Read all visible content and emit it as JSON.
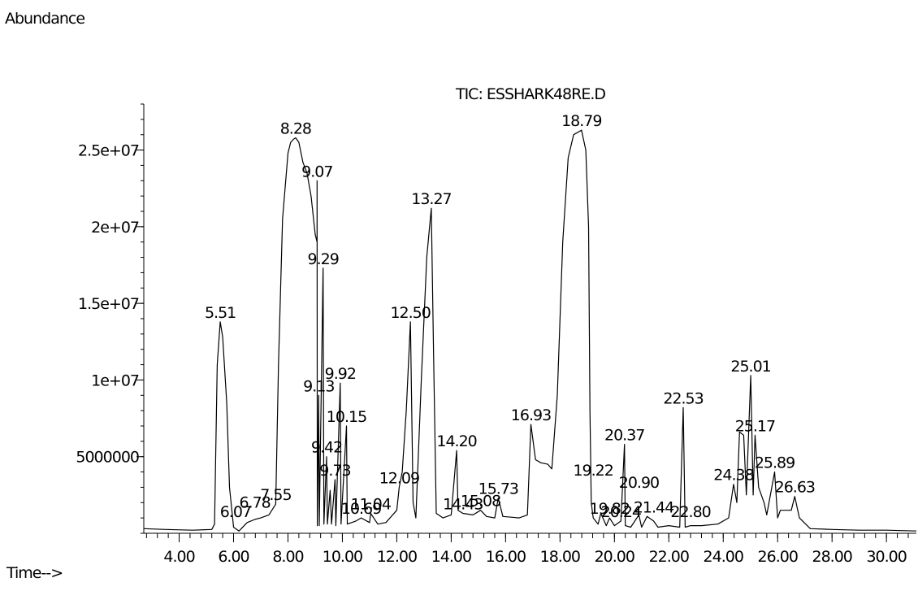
{
  "page": {
    "y_axis_caption": "Abundance",
    "x_axis_caption": "Time-->"
  },
  "chart_data": {
    "type": "line",
    "title": "TIC: ESSHARK48RE.D",
    "xlabel": "Time-->",
    "ylabel": "Abundance",
    "xlim": [
      2.7,
      31.1
    ],
    "ylim": [
      0,
      28000000
    ],
    "x_ticks": [
      "4.00",
      "6.00",
      "8.00",
      "10.00",
      "12.00",
      "14.00",
      "16.00",
      "18.00",
      "20.00",
      "22.00",
      "24.00",
      "26.00",
      "28.00",
      "30.00"
    ],
    "y_ticks": [
      {
        "value": 5000000,
        "label": "5000000"
      },
      {
        "value": 10000000,
        "label": "1e+07"
      },
      {
        "value": 15000000,
        "label": "1.5e+07"
      },
      {
        "value": 20000000,
        "label": "2e+07"
      },
      {
        "value": 25000000,
        "label": "2.5e+07"
      }
    ],
    "series": [
      {
        "points": [
          [
            2.7,
            300000
          ],
          [
            3.5,
            250000
          ],
          [
            4.5,
            200000
          ],
          [
            5.2,
            250000
          ],
          [
            5.3,
            600000
          ],
          [
            5.4,
            11000000
          ],
          [
            5.51,
            13800000
          ],
          [
            5.6,
            12800000
          ],
          [
            5.75,
            8500000
          ],
          [
            5.85,
            3000000
          ],
          [
            6.0,
            400000
          ],
          [
            6.2,
            150000
          ],
          [
            6.5,
            700000
          ],
          [
            6.78,
            900000
          ],
          [
            7.0,
            1000000
          ],
          [
            7.3,
            1200000
          ],
          [
            7.55,
            1900000
          ],
          [
            7.65,
            11000000
          ],
          [
            7.8,
            20500000
          ],
          [
            8.0,
            24800000
          ],
          [
            8.1,
            25500000
          ],
          [
            8.2,
            25700000
          ],
          [
            8.28,
            25800000
          ],
          [
            8.4,
            25500000
          ],
          [
            8.55,
            24200000
          ],
          [
            8.7,
            23500000
          ],
          [
            8.85,
            22000000
          ],
          [
            9.0,
            19500000
          ],
          [
            9.07,
            19000000
          ],
          [
            9.07,
            23000000
          ],
          [
            9.08,
            500000
          ],
          [
            9.13,
            9000000
          ],
          [
            9.15,
            500000
          ],
          [
            9.29,
            17300000
          ],
          [
            9.32,
            600000
          ],
          [
            9.42,
            5000000
          ],
          [
            9.45,
            600000
          ],
          [
            9.55,
            2800000
          ],
          [
            9.6,
            600000
          ],
          [
            9.73,
            3500000
          ],
          [
            9.76,
            500000
          ],
          [
            9.92,
            9800000
          ],
          [
            9.95,
            600000
          ],
          [
            10.15,
            7000000
          ],
          [
            10.18,
            600000
          ],
          [
            10.5,
            800000
          ],
          [
            10.69,
            1000000
          ],
          [
            11.0,
            700000
          ],
          [
            11.04,
            1300000
          ],
          [
            11.3,
            600000
          ],
          [
            11.6,
            700000
          ],
          [
            12.0,
            1500000
          ],
          [
            12.09,
            3000000
          ],
          [
            12.2,
            4000000
          ],
          [
            12.35,
            8000000
          ],
          [
            12.5,
            13800000
          ],
          [
            12.6,
            2000000
          ],
          [
            12.7,
            1000000
          ],
          [
            12.9,
            10000000
          ],
          [
            13.1,
            18000000
          ],
          [
            13.27,
            21200000
          ],
          [
            13.35,
            12000000
          ],
          [
            13.45,
            1300000
          ],
          [
            13.7,
            1000000
          ],
          [
            14.0,
            1200000
          ],
          [
            14.2,
            5400000
          ],
          [
            14.25,
            1500000
          ],
          [
            14.43,
            1300000
          ],
          [
            14.8,
            1200000
          ],
          [
            15.08,
            1500000
          ],
          [
            15.3,
            1100000
          ],
          [
            15.6,
            1000000
          ],
          [
            15.73,
            2300000
          ],
          [
            15.9,
            1100000
          ],
          [
            16.5,
            1000000
          ],
          [
            16.8,
            1200000
          ],
          [
            16.93,
            7100000
          ],
          [
            17.1,
            4800000
          ],
          [
            17.3,
            4600000
          ],
          [
            17.55,
            4500000
          ],
          [
            17.7,
            4200000
          ],
          [
            17.9,
            9000000
          ],
          [
            18.1,
            19000000
          ],
          [
            18.3,
            24500000
          ],
          [
            18.5,
            26000000
          ],
          [
            18.79,
            26300000
          ],
          [
            18.95,
            25000000
          ],
          [
            19.05,
            20000000
          ],
          [
            19.1,
            8000000
          ],
          [
            19.15,
            2000000
          ],
          [
            19.22,
            1000000
          ],
          [
            19.4,
            600000
          ],
          [
            19.5,
            1300000
          ],
          [
            19.7,
            500000
          ],
          [
            19.82,
            1000000
          ],
          [
            20.0,
            500000
          ],
          [
            20.24,
            800000
          ],
          [
            20.37,
            5800000
          ],
          [
            20.4,
            500000
          ],
          [
            20.6,
            400000
          ],
          [
            20.9,
            1200000
          ],
          [
            21.0,
            400000
          ],
          [
            21.2,
            1100000
          ],
          [
            21.44,
            800000
          ],
          [
            21.6,
            400000
          ],
          [
            22.0,
            500000
          ],
          [
            22.4,
            400000
          ],
          [
            22.53,
            8200000
          ],
          [
            22.6,
            400000
          ],
          [
            22.8,
            500000
          ],
          [
            23.2,
            500000
          ],
          [
            23.8,
            600000
          ],
          [
            24.2,
            1000000
          ],
          [
            24.38,
            3200000
          ],
          [
            24.5,
            2000000
          ],
          [
            24.6,
            6600000
          ],
          [
            24.75,
            6400000
          ],
          [
            24.85,
            2500000
          ],
          [
            25.01,
            10300000
          ],
          [
            25.1,
            2500000
          ],
          [
            25.17,
            6400000
          ],
          [
            25.3,
            3000000
          ],
          [
            25.5,
            2000000
          ],
          [
            25.6,
            1200000
          ],
          [
            25.89,
            4000000
          ],
          [
            26.0,
            1000000
          ],
          [
            26.1,
            1500000
          ],
          [
            26.5,
            1500000
          ],
          [
            26.63,
            2400000
          ],
          [
            26.8,
            1000000
          ],
          [
            27.2,
            300000
          ],
          [
            28.0,
            250000
          ],
          [
            29.0,
            200000
          ],
          [
            30.0,
            200000
          ],
          [
            31.1,
            150000
          ]
        ]
      }
    ],
    "peak_labels": [
      {
        "x": 5.51,
        "y": 13800000,
        "label": "5.51"
      },
      {
        "x": 6.07,
        "y": 800000,
        "label": "6.07"
      },
      {
        "x": 6.78,
        "y": 1400000,
        "label": "6.78"
      },
      {
        "x": 7.55,
        "y": 1900000,
        "label": "7.55"
      },
      {
        "x": 8.28,
        "y": 25800000,
        "label": "8.28"
      },
      {
        "x": 9.07,
        "y": 23000000,
        "label": "9.07"
      },
      {
        "x": 9.29,
        "y": 17300000,
        "label": "9.29"
      },
      {
        "x": 9.13,
        "y": 9000000,
        "label": "9.13"
      },
      {
        "x": 9.42,
        "y": 5000000,
        "label": "9.42"
      },
      {
        "x": 9.73,
        "y": 3500000,
        "label": "9.73"
      },
      {
        "x": 9.92,
        "y": 9800000,
        "label": "9.92"
      },
      {
        "x": 10.15,
        "y": 7000000,
        "label": "10.15"
      },
      {
        "x": 10.69,
        "y": 1000000,
        "label": "10.69"
      },
      {
        "x": 11.04,
        "y": 1300000,
        "label": "11.04"
      },
      {
        "x": 12.09,
        "y": 3000000,
        "label": "12.09"
      },
      {
        "x": 12.5,
        "y": 13800000,
        "label": "12.50"
      },
      {
        "x": 13.27,
        "y": 21200000,
        "label": "13.27"
      },
      {
        "x": 14.2,
        "y": 5400000,
        "label": "14.20"
      },
      {
        "x": 14.43,
        "y": 1300000,
        "label": "14.43"
      },
      {
        "x": 15.08,
        "y": 1500000,
        "label": "15.08"
      },
      {
        "x": 15.73,
        "y": 2300000,
        "label": "15.73"
      },
      {
        "x": 16.93,
        "y": 7100000,
        "label": "16.93"
      },
      {
        "x": 18.79,
        "y": 26300000,
        "label": "18.79"
      },
      {
        "x": 19.22,
        "y": 3500000,
        "label": "19.22"
      },
      {
        "x": 19.82,
        "y": 1000000,
        "label": "19.82"
      },
      {
        "x": 20.24,
        "y": 800000,
        "label": "20.24"
      },
      {
        "x": 20.37,
        "y": 5800000,
        "label": "20.37"
      },
      {
        "x": 20.9,
        "y": 2700000,
        "label": "20.90"
      },
      {
        "x": 21.44,
        "y": 1100000,
        "label": "21.44"
      },
      {
        "x": 22.53,
        "y": 8200000,
        "label": "22.53"
      },
      {
        "x": 22.8,
        "y": 800000,
        "label": "22.80"
      },
      {
        "x": 24.38,
        "y": 3200000,
        "label": "24.38"
      },
      {
        "x": 25.01,
        "y": 10300000,
        "label": "25.01"
      },
      {
        "x": 25.17,
        "y": 6400000,
        "label": "25.17"
      },
      {
        "x": 25.89,
        "y": 4000000,
        "label": "25.89"
      },
      {
        "x": 26.63,
        "y": 2400000,
        "label": "26.63"
      }
    ],
    "grid": false,
    "legend": "none"
  }
}
